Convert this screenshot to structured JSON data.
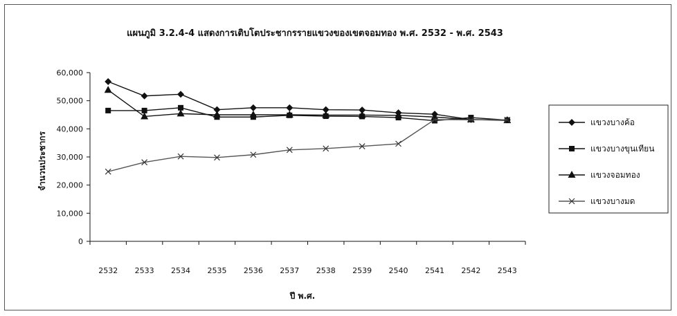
{
  "chart_data": {
    "type": "line",
    "title": "แผนภูมิ 3.2.4-4 แสดงการเติบโตประชากรรายแขวงของเขตจอมทอง พ.ศ. 2532 - พ.ศ. 2543",
    "xlabel": "ปี พ.ศ.",
    "ylabel": "จำนวนประชากร",
    "ylim": [
      0,
      60000
    ],
    "yticks": [
      0,
      10000,
      20000,
      30000,
      40000,
      50000,
      60000
    ],
    "ytick_labels": [
      "0",
      "10,000",
      "20,000",
      "30,000",
      "40,000",
      "50,000",
      "60,000"
    ],
    "categories": [
      "2532",
      "2533",
      "2534",
      "2535",
      "2536",
      "2537",
      "2538",
      "2539",
      "2540",
      "2541",
      "2542",
      "2543"
    ],
    "grid": false,
    "legend_position": "right",
    "series": [
      {
        "name": "แขวงบางค้อ",
        "marker": "diamond",
        "values": [
          56800,
          51700,
          52300,
          46800,
          47500,
          47500,
          46800,
          46700,
          45700,
          45200,
          43300,
          43200
        ]
      },
      {
        "name": "แขวงบางขุนเทียน",
        "marker": "square",
        "values": [
          46500,
          46500,
          47500,
          44200,
          44200,
          44800,
          44500,
          44400,
          44000,
          42900,
          44000,
          43100
        ]
      },
      {
        "name": "แขวงจอมทอง",
        "marker": "triangle",
        "values": [
          53800,
          44400,
          45400,
          45000,
          45000,
          45000,
          44900,
          44900,
          44800,
          44200,
          43300,
          43000
        ]
      },
      {
        "name": "แขวงบางมด",
        "marker": "x",
        "values": [
          24800,
          28100,
          30200,
          29800,
          30800,
          32500,
          33000,
          33800,
          34700,
          43300,
          43200,
          43200
        ]
      }
    ]
  }
}
